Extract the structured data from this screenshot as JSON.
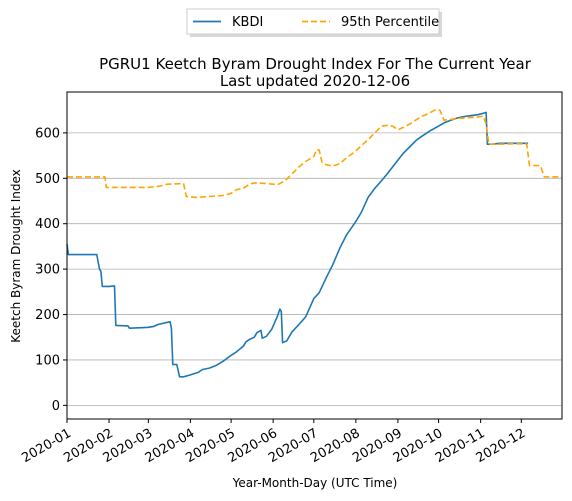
{
  "chart_data": {
    "type": "line",
    "title": "PGRU1 Keetch Byram Drought Index For The Current Year",
    "subtitle": "Last updated 2020-12-06",
    "xlabel": "Year-Month-Day (UTC Time)",
    "ylabel": "Keetch Byram Drought Index",
    "xlim": [
      "2020-01-01",
      "2020-12-31"
    ],
    "ylim": [
      -30,
      690
    ],
    "yticks": [
      0,
      100,
      200,
      300,
      400,
      500,
      600
    ],
    "xtick_labels": [
      "2020-01",
      "2020-02",
      "2020-03",
      "2020-04",
      "2020-05",
      "2020-06",
      "2020-07",
      "2020-08",
      "2020-09",
      "2020-10",
      "2020-11",
      "2020-12"
    ],
    "grid": "horizontal",
    "legend": "top-center, outside plot",
    "series": [
      {
        "name": "KBDI",
        "color": "#1f77b4",
        "style": "solid",
        "points": [
          [
            "2020-01-01",
            355
          ],
          [
            "2020-01-02",
            332
          ],
          [
            "2020-01-10",
            332
          ],
          [
            "2020-01-20",
            332
          ],
          [
            "2020-01-23",
            332
          ],
          [
            "2020-01-25",
            300
          ],
          [
            "2020-01-26",
            295
          ],
          [
            "2020-01-27",
            262
          ],
          [
            "2020-02-01",
            262
          ],
          [
            "2020-02-05",
            263
          ],
          [
            "2020-02-06",
            176
          ],
          [
            "2020-02-15",
            175
          ],
          [
            "2020-02-16",
            170
          ],
          [
            "2020-02-25",
            171
          ],
          [
            "2020-03-01",
            172
          ],
          [
            "2020-03-05",
            174
          ],
          [
            "2020-03-08",
            178
          ],
          [
            "2020-03-15",
            183
          ],
          [
            "2020-03-17",
            184
          ],
          [
            "2020-03-18",
            170
          ],
          [
            "2020-03-19",
            90
          ],
          [
            "2020-03-22",
            90
          ],
          [
            "2020-03-24",
            63
          ],
          [
            "2020-03-27",
            63
          ],
          [
            "2020-04-01",
            67
          ],
          [
            "2020-04-07",
            73
          ],
          [
            "2020-04-10",
            79
          ],
          [
            "2020-04-15",
            82
          ],
          [
            "2020-04-20",
            88
          ],
          [
            "2020-04-25",
            97
          ],
          [
            "2020-05-01",
            110
          ],
          [
            "2020-05-05",
            118
          ],
          [
            "2020-05-10",
            130
          ],
          [
            "2020-05-12",
            140
          ],
          [
            "2020-05-15",
            146
          ],
          [
            "2020-05-18",
            150
          ],
          [
            "2020-05-20",
            160
          ],
          [
            "2020-05-23",
            165
          ],
          [
            "2020-05-24",
            148
          ],
          [
            "2020-05-27",
            152
          ],
          [
            "2020-05-31",
            168
          ],
          [
            "2020-06-04",
            195
          ],
          [
            "2020-06-06",
            212
          ],
          [
            "2020-06-07",
            207
          ],
          [
            "2020-06-08",
            138
          ],
          [
            "2020-06-11",
            142
          ],
          [
            "2020-06-15",
            162
          ],
          [
            "2020-06-20",
            178
          ],
          [
            "2020-06-25",
            195
          ],
          [
            "2020-07-01",
            235
          ],
          [
            "2020-07-05",
            248
          ],
          [
            "2020-07-10",
            280
          ],
          [
            "2020-07-15",
            310
          ],
          [
            "2020-07-20",
            345
          ],
          [
            "2020-07-25",
            375
          ],
          [
            "2020-08-01",
            405
          ],
          [
            "2020-08-05",
            425
          ],
          [
            "2020-08-10",
            458
          ],
          [
            "2020-08-15",
            478
          ],
          [
            "2020-08-20",
            495
          ],
          [
            "2020-08-25",
            513
          ],
          [
            "2020-09-01",
            540
          ],
          [
            "2020-09-05",
            555
          ],
          [
            "2020-09-10",
            570
          ],
          [
            "2020-09-15",
            585
          ],
          [
            "2020-09-20",
            595
          ],
          [
            "2020-09-25",
            605
          ],
          [
            "2020-10-01",
            615
          ],
          [
            "2020-10-05",
            622
          ],
          [
            "2020-10-10",
            628
          ],
          [
            "2020-10-15",
            633
          ],
          [
            "2020-10-20",
            636
          ],
          [
            "2020-10-25",
            638
          ],
          [
            "2020-10-30",
            640
          ],
          [
            "2020-11-03",
            643
          ],
          [
            "2020-11-05",
            645
          ],
          [
            "2020-11-06",
            575
          ],
          [
            "2020-11-10",
            575
          ],
          [
            "2020-11-15",
            577
          ],
          [
            "2020-11-20",
            577
          ],
          [
            "2020-11-25",
            577
          ],
          [
            "2020-12-06",
            577
          ]
        ]
      },
      {
        "name": "95th Percentile",
        "color": "#ffa500",
        "style": "dashed",
        "points": [
          [
            "2020-01-01",
            503
          ],
          [
            "2020-01-15",
            503
          ],
          [
            "2020-01-29",
            503
          ],
          [
            "2020-01-30",
            480
          ],
          [
            "2020-02-15",
            480
          ],
          [
            "2020-03-01",
            480
          ],
          [
            "2020-03-10",
            483
          ],
          [
            "2020-03-15",
            487
          ],
          [
            "2020-03-25",
            488
          ],
          [
            "2020-03-27",
            488
          ],
          [
            "2020-03-29",
            460
          ],
          [
            "2020-04-05",
            458
          ],
          [
            "2020-04-15",
            460
          ],
          [
            "2020-04-25",
            462
          ],
          [
            "2020-05-01",
            467
          ],
          [
            "2020-05-05",
            475
          ],
          [
            "2020-05-10",
            478
          ],
          [
            "2020-05-15",
            488
          ],
          [
            "2020-05-20",
            490
          ],
          [
            "2020-06-01",
            487
          ],
          [
            "2020-06-05",
            487
          ],
          [
            "2020-06-10",
            495
          ],
          [
            "2020-06-15",
            510
          ],
          [
            "2020-06-20",
            525
          ],
          [
            "2020-06-25",
            537
          ],
          [
            "2020-07-01",
            548
          ],
          [
            "2020-07-03",
            563
          ],
          [
            "2020-07-05",
            562
          ],
          [
            "2020-07-07",
            535
          ],
          [
            "2020-07-10",
            530
          ],
          [
            "2020-07-15",
            527
          ],
          [
            "2020-07-20",
            532
          ],
          [
            "2020-07-25",
            545
          ],
          [
            "2020-08-01",
            560
          ],
          [
            "2020-08-05",
            572
          ],
          [
            "2020-08-10",
            585
          ],
          [
            "2020-08-15",
            600
          ],
          [
            "2020-08-20",
            615
          ],
          [
            "2020-08-25",
            617
          ],
          [
            "2020-08-28",
            615
          ],
          [
            "2020-09-01",
            607
          ],
          [
            "2020-09-05",
            612
          ],
          [
            "2020-09-10",
            620
          ],
          [
            "2020-09-15",
            630
          ],
          [
            "2020-09-20",
            638
          ],
          [
            "2020-09-25",
            645
          ],
          [
            "2020-09-28",
            650
          ],
          [
            "2020-10-02",
            650
          ],
          [
            "2020-10-05",
            628
          ],
          [
            "2020-10-10",
            630
          ],
          [
            "2020-10-20",
            633
          ],
          [
            "2020-10-30",
            635
          ],
          [
            "2020-11-03",
            637
          ],
          [
            "2020-11-05",
            620
          ],
          [
            "2020-11-07",
            575
          ],
          [
            "2020-11-15",
            575
          ],
          [
            "2020-11-25",
            576
          ],
          [
            "2020-12-05",
            576
          ],
          [
            "2020-12-07",
            528
          ],
          [
            "2020-12-15",
            528
          ],
          [
            "2020-12-18",
            503
          ],
          [
            "2020-12-31",
            503
          ]
        ]
      }
    ]
  }
}
